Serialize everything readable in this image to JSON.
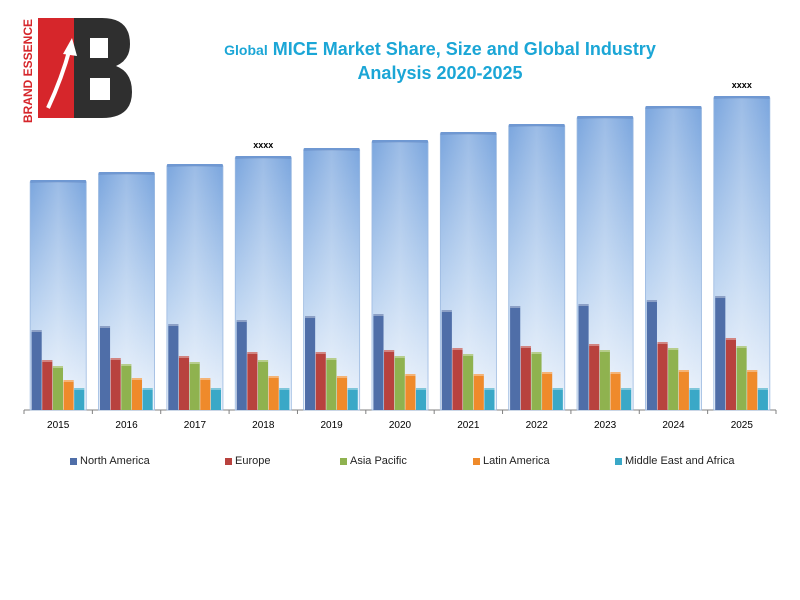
{
  "brand": {
    "logo_text": "BRAND ESSENCE",
    "logo_icon": "brand-essence-be-logo-icon"
  },
  "chart_data": {
    "type": "bar",
    "title": "Global MICE Market Share, Size and Global Industry Analysis 2020-2025",
    "title_parts": [
      "Global",
      "MICE Market Share, Size and Global Industry",
      "Analysis 2020-2025"
    ],
    "categories": [
      "2015",
      "2016",
      "2017",
      "2018",
      "2019",
      "2020",
      "2021",
      "2022",
      "2023",
      "2024",
      "2025"
    ],
    "total": {
      "values": [
        57,
        59,
        61,
        63,
        65,
        67,
        69,
        71,
        73,
        75.5,
        78
      ],
      "color": "#8ab4e4"
    },
    "series": [
      {
        "name": "North America",
        "values": [
          20,
          21,
          21.5,
          22.5,
          23.5,
          24,
          25,
          26,
          26.5,
          27.5,
          28.5
        ],
        "color": "#4f6ea8"
      },
      {
        "name": "Europe",
        "values": [
          12.5,
          13,
          13.5,
          14.5,
          14.5,
          15,
          15.5,
          16,
          16.5,
          17,
          18
        ],
        "color": "#b8423e"
      },
      {
        "name": "Asia Pacific",
        "values": [
          11,
          11.5,
          12,
          12.5,
          13,
          13.5,
          14,
          14.5,
          15,
          15.5,
          16
        ],
        "color": "#8fb24f"
      },
      {
        "name": "Latin America",
        "values": [
          7.5,
          8,
          8,
          8.5,
          8.5,
          9,
          9,
          9.5,
          9.5,
          10,
          10
        ],
        "color": "#ef8a2b"
      },
      {
        "name": "Middle East and Africa",
        "values": [
          5.5,
          5.5,
          5.5,
          5.5,
          5.5,
          5.5,
          5.5,
          5.5,
          5.5,
          5.5,
          5.5
        ],
        "color": "#3aa8c7"
      }
    ],
    "annotations": [
      {
        "category": "2018",
        "text": "xxxx"
      },
      {
        "category": "2025",
        "text": "xxxx"
      }
    ],
    "xlabel": "",
    "ylabel": "",
    "ylim": [
      0,
      80
    ],
    "grid": false,
    "legend_position": "bottom"
  }
}
